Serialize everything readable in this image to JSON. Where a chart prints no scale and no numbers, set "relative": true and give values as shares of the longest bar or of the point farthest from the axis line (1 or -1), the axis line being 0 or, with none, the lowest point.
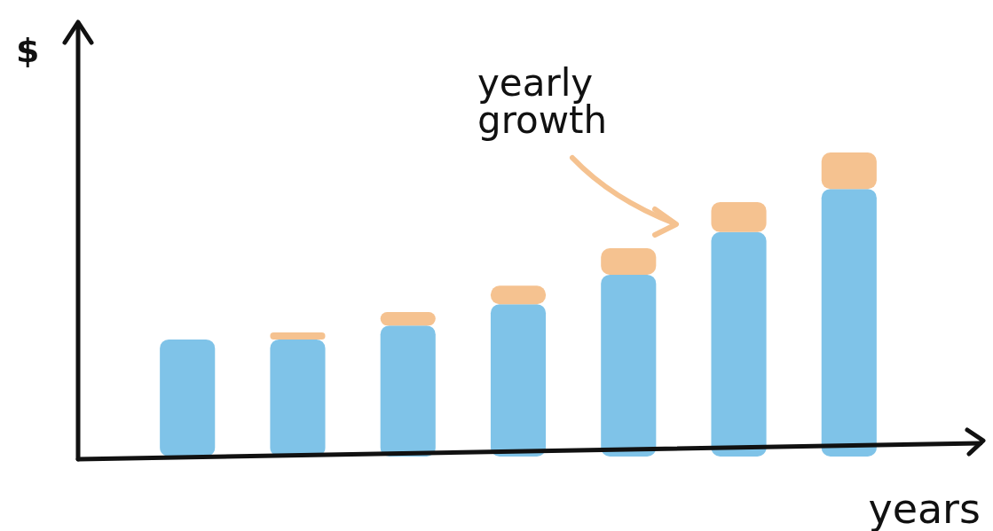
{
  "chart_data": {
    "type": "bar",
    "stacked": true,
    "relative": true,
    "xlabel": "years",
    "ylabel": "$",
    "annotations": [
      "yearly growth"
    ],
    "categories": [
      null,
      null,
      null,
      null,
      null,
      null,
      null
    ],
    "series": [
      {
        "color": "#7fc3e8",
        "values": [
          0.385,
          0.385,
          0.431,
          0.501,
          0.598,
          0.738,
          0.88
        ]
      },
      {
        "color": "#f5c290",
        "values": [
          0,
          0.023,
          0.044,
          0.061,
          0.087,
          0.099,
          0.12
        ]
      }
    ]
  }
}
